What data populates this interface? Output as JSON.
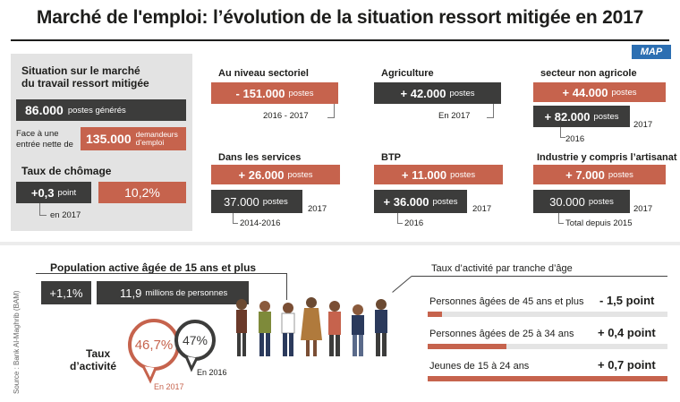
{
  "title": "Marché de l'emploi: l’évolution de la situation ressort mitigée en 2017",
  "logo": "MAP",
  "left_panel": {
    "heading_line1": "Situation sur le marché",
    "heading_line2": "du travail ressort mitigée",
    "jobs_value": "86.000",
    "jobs_label": "postes générés",
    "entry_text_line1": "Face à une",
    "entry_text_line2": "entrée nette de",
    "entry_value": "135.000",
    "entry_label_line1": "demandeurs",
    "entry_label_line2": "d’emploi",
    "unemployment_heading": "Taux de chômage",
    "unemployment_change": "+0,3",
    "unemployment_change_unit": "point",
    "unemployment_rate": "10,2%",
    "unemployment_year": "en 2017"
  },
  "sectors": {
    "sectoral": {
      "label": "Au niveau sectoriel",
      "value": "- 151.000",
      "unit": "postes",
      "period": "2016 - 2017"
    },
    "agriculture": {
      "label": "Agriculture",
      "value": "+ 42.000",
      "unit": "postes",
      "period": "En 2017"
    },
    "non_agricole": {
      "label": "secteur non agricole",
      "value_2017": "+ 44.000",
      "unit_2017": "postes",
      "year_a": "2017",
      "value_2016": "+ 82.000",
      "unit_2016": "postes",
      "year_b": "2016"
    },
    "services": {
      "label": "Dans les services",
      "value_2017": "+ 26.000",
      "unit_2017": "postes",
      "year_a": "2017",
      "value_prev": "37.000",
      "unit_prev": "postes",
      "period_prev": "2014-2016"
    },
    "btp": {
      "label": "BTP",
      "value_2017": "+ 11.000",
      "unit_2017": "postes",
      "year_a": "2017",
      "value_2016": "+ 36.000",
      "unit_2016": "postes",
      "year_b": "2016"
    },
    "industrie": {
      "label": "Industrie y compris l’artisanat",
      "value_2017": "+ 7.000",
      "unit_2017": "postes",
      "year_a": "2017",
      "value_total": "30.000",
      "unit_total": "postes",
      "period_total": "Total depuis 2015"
    }
  },
  "population": {
    "heading": "Population active âgée de 15 ans et plus",
    "change": "+1,1%",
    "total_value": "11,9",
    "total_label": "millions de personnes",
    "activity_label_line1": "Taux",
    "activity_label_line2": "d’activité",
    "rate_2017": "46,7%",
    "rate_2017_label": "En 2017",
    "rate_2016": "47%",
    "rate_2016_label": "En 2016"
  },
  "age_groups": {
    "heading": "Taux d’activité par tranche d’âge",
    "rows": [
      {
        "label": "Personnes âgées de 45 ans et plus",
        "change": "- 1,5 point",
        "fill": 0.06
      },
      {
        "label": "Personnes âgées de 25 à 34 ans",
        "change": "+ 0,4 point",
        "fill": 0.33
      },
      {
        "label": "Jeunes de 15 à 24 ans",
        "change": "+ 0,7 point",
        "fill": 1.0
      }
    ]
  },
  "source": "Source : Bank Al-Maghrib (BAM)",
  "colors": {
    "accent_red": "#c6634d",
    "dark": "#3c3c3b",
    "panel_gray": "#e3e3e3",
    "logo_blue": "#2c6fb2"
  }
}
